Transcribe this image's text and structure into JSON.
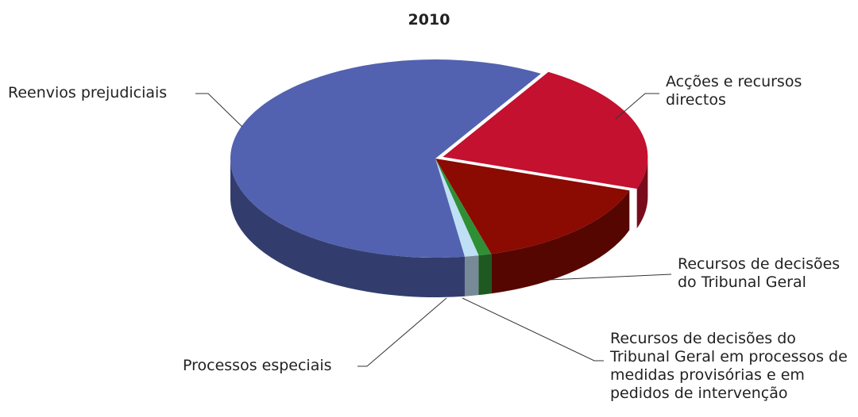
{
  "chart_data": {
    "type": "pie3d",
    "title": "2010",
    "categories": [
      "Acções e recursos directos",
      "Recursos de decisões do Tribunal Geral",
      "Recursos de decisões do Tribunal Geral em processos de medidas provisórias e em pedidos de intervenção",
      "Processos especiais",
      "Reenvios prejudiciais"
    ],
    "values": [
      21.6,
      15.4,
      1.0,
      1.1,
      60.9
    ],
    "colors": [
      "#c3112f",
      "#8b0a02",
      "#2f8f35",
      "#bfe0f4",
      "#5262b0"
    ]
  }
}
